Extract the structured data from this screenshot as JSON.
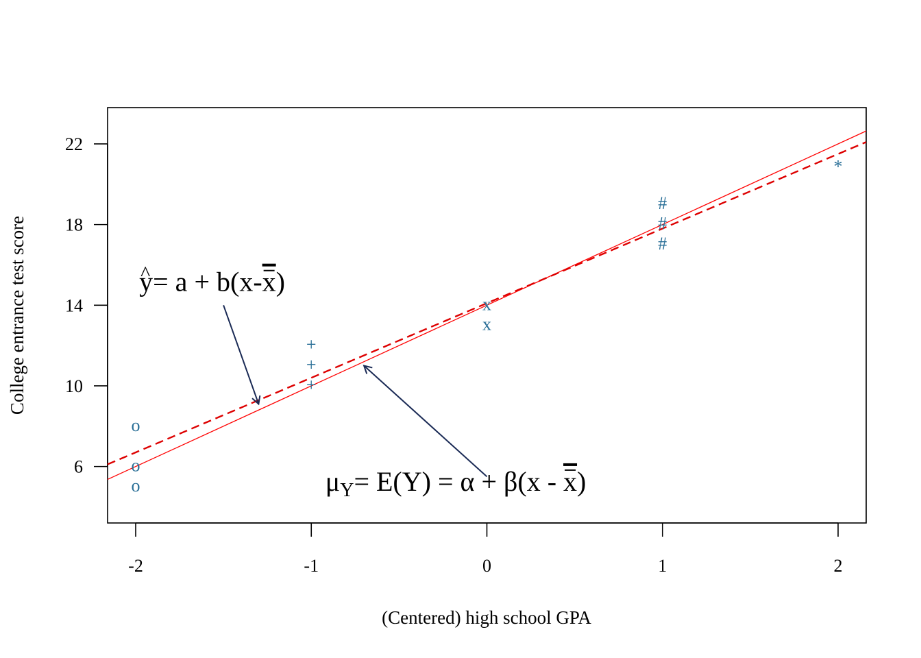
{
  "chart_data": {
    "type": "scatter",
    "title": "",
    "xlabel": "(Centered) high school GPA",
    "ylabel": "College entrance test score",
    "xlim": [
      -2.16,
      2.16
    ],
    "ylim": [
      3.2,
      23.8
    ],
    "x_ticks": [
      "-2",
      "-1",
      "0",
      "1",
      "2"
    ],
    "x_tick_values": [
      -2,
      -1,
      0,
      1,
      2
    ],
    "y_ticks": [
      "6",
      "10",
      "14",
      "18",
      "22"
    ],
    "y_tick_values": [
      6,
      10,
      14,
      18,
      22
    ],
    "grid": false,
    "point_color": "#2a6f97",
    "points": [
      {
        "x": -2,
        "y": 8,
        "label": "o"
      },
      {
        "x": -2,
        "y": 6,
        "label": "o"
      },
      {
        "x": -2,
        "y": 5,
        "label": "o"
      },
      {
        "x": -1,
        "y": 12,
        "label": "+"
      },
      {
        "x": -1,
        "y": 11,
        "label": "+"
      },
      {
        "x": -1,
        "y": 10,
        "label": "+"
      },
      {
        "x": 0,
        "y": 14,
        "label": "x"
      },
      {
        "x": 0,
        "y": 13,
        "label": "x"
      },
      {
        "x": 1,
        "y": 19,
        "label": "#"
      },
      {
        "x": 1,
        "y": 18,
        "label": "#"
      },
      {
        "x": 1,
        "y": 17,
        "label": "#"
      },
      {
        "x": 2,
        "y": 21,
        "label": "*"
      }
    ],
    "lines": [
      {
        "intercept": 14,
        "slope": 4,
        "style": "solid",
        "color": "#ff0000"
      },
      {
        "intercept": 14.1,
        "slope": 3.7,
        "style": "dashed",
        "color": "#dd0000"
      }
    ],
    "annotations": {
      "fitted": {
        "y": "y",
        "hat": "^",
        "rest": "= a + b(x-",
        "xbar": "x",
        "close": ")",
        "x": -1.98,
        "y_pos": 14.7,
        "arrow_from": [
          -1.5,
          14.0
        ],
        "arrow_to": [
          -1.3,
          9.1
        ]
      },
      "population": {
        "mu": "μ",
        "sub": "Y",
        "rest": "= E(Y) = α + β(x - ",
        "xbar": "x",
        "close": ")",
        "x": -0.92,
        "y_pos": 4.8,
        "arrow_from": [
          0,
          5.5
        ],
        "arrow_to": [
          -0.7,
          11.0
        ]
      },
      "arrow_color": "#1a2a55"
    }
  }
}
